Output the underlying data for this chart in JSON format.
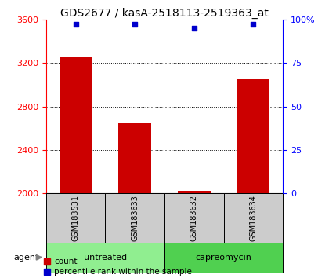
{
  "title": "GDS2677 / kasA-2518113-2519363_at",
  "samples": [
    "GSM183531",
    "GSM183633",
    "GSM183632",
    "GSM183634"
  ],
  "counts": [
    3250,
    2650,
    2025,
    3050
  ],
  "percentiles": [
    97,
    97,
    95,
    97
  ],
  "ylim_left": [
    2000,
    3600
  ],
  "ylim_right": [
    0,
    100
  ],
  "yticks_left": [
    2000,
    2400,
    2800,
    3200,
    3600
  ],
  "yticks_right": [
    0,
    25,
    50,
    75,
    100
  ],
  "ytick_labels_right": [
    "0",
    "25",
    "50",
    "75",
    "100%"
  ],
  "bar_color": "#cc0000",
  "dot_color": "#0000cc",
  "bar_width": 0.55,
  "groups": [
    {
      "label": "untreated",
      "samples": [
        0,
        1
      ],
      "color": "#90ee90"
    },
    {
      "label": "capreomycin",
      "samples": [
        2,
        3
      ],
      "color": "#50d050"
    }
  ],
  "agent_label": "agent",
  "legend_count_label": "count",
  "legend_pct_label": "percentile rank within the sample",
  "background_color": "#ffffff",
  "sample_box_color": "#cccccc",
  "title_fontsize": 10,
  "tick_fontsize": 8,
  "sample_fontsize": 7,
  "group_fontsize": 8,
  "legend_fontsize": 7.5
}
